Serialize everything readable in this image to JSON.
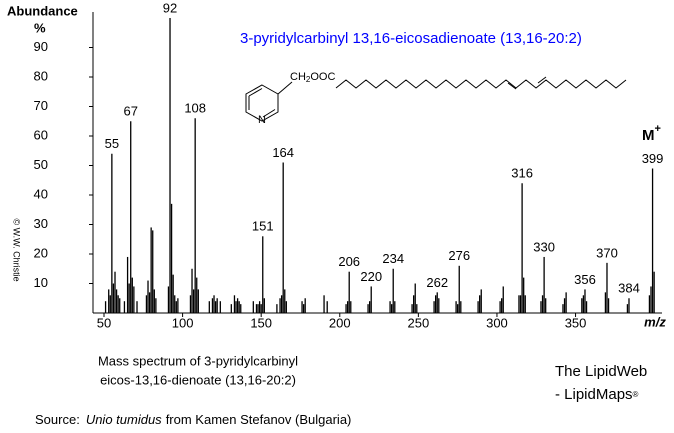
{
  "chart_data": {
    "type": "spectrum",
    "title": "3-pyridylcarbinyl 13,16-eicosadienoate (13,16-20:2)",
    "y_label": "Abundance",
    "y_unit": "%",
    "x_label": "m/z",
    "molecular_ion_label": "M",
    "molecular_ion_charge": "+",
    "structure_group": "CH",
    "structure_subscript": "2",
    "structure_ester": "OOC",
    "structure_atom": "N",
    "copyright": "© W.W. Christie",
    "caption": [
      "Mass spectrum of 3-pyridylcarbinyl",
      "eicos-13,16-dienoate (13,16-20:2)"
    ],
    "credit": [
      "The LipidWeb",
      "- LipidMaps"
    ],
    "credit_mark": "®",
    "source_prefix": "Source:",
    "source_species": "Unio tumidus",
    "source_suffix": "from Kamen Stefanov (Bulgaria)",
    "color": "#000000",
    "title_color": "#0000ff",
    "xlim": [
      43,
      405
    ],
    "ylim": [
      0,
      100
    ],
    "xticks": [
      50,
      100,
      150,
      200,
      250,
      300,
      350
    ],
    "yticks": [
      10,
      20,
      30,
      40,
      50,
      60,
      70,
      80,
      90
    ],
    "labeled_x": [
      55,
      67,
      92,
      108,
      151,
      164,
      206,
      220,
      234,
      262,
      276,
      316,
      330,
      356,
      370,
      384,
      399
    ],
    "labeled_values": [
      54,
      65,
      100,
      66,
      26,
      51,
      14,
      9,
      15,
      7,
      16,
      44,
      19,
      8,
      17,
      5,
      49
    ],
    "x": [
      51,
      53,
      54,
      56,
      57,
      58,
      59,
      60,
      63,
      65,
      66,
      68,
      69,
      71,
      77,
      78,
      79,
      80,
      81,
      82,
      83,
      91,
      93,
      94,
      95,
      96,
      97,
      105,
      106,
      107,
      109,
      110,
      117,
      119,
      120,
      121,
      122,
      124,
      131,
      133,
      134,
      135,
      136,
      137,
      145,
      147,
      148,
      149,
      150,
      152,
      160,
      162,
      163,
      165,
      166,
      176,
      177,
      178,
      190,
      192,
      204,
      205,
      207,
      218,
      219,
      232,
      233,
      235,
      246,
      247,
      248,
      249,
      260,
      261,
      263,
      274,
      275,
      277,
      288,
      289,
      290,
      302,
      303,
      304,
      314,
      315,
      317,
      318,
      328,
      329,
      331,
      342,
      343,
      344,
      354,
      355,
      357,
      369,
      371,
      383,
      397,
      398,
      400
    ],
    "values": [
      4,
      8,
      6,
      10,
      14,
      8,
      6,
      5,
      4,
      19,
      10,
      12,
      9,
      4,
      6,
      11,
      7,
      29,
      28,
      8,
      5,
      9,
      37,
      13,
      6,
      4,
      5,
      6,
      15,
      8,
      12,
      8,
      4,
      5,
      6,
      4,
      5,
      4,
      3,
      6,
      4,
      5,
      4,
      3,
      4,
      3,
      3,
      4,
      3,
      5,
      3,
      5,
      6,
      8,
      4,
      4,
      3,
      5,
      6,
      4,
      3,
      4,
      4,
      3,
      4,
      4,
      3,
      4,
      3,
      6,
      10,
      3,
      4,
      6,
      5,
      4,
      3,
      4,
      4,
      6,
      8,
      4,
      5,
      9,
      6,
      6,
      12,
      6,
      4,
      6,
      5,
      3,
      5,
      7,
      5,
      6,
      4,
      7,
      5,
      3,
      6,
      9,
      14
    ]
  }
}
